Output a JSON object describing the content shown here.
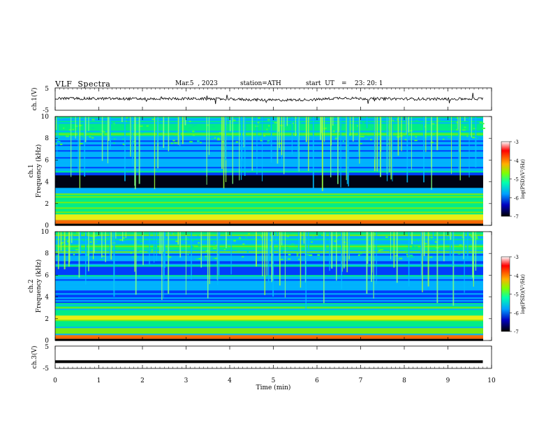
{
  "header": {
    "title": "VLF  Spectra",
    "date": "Mar.5  , 2023",
    "station": "station=ATH",
    "start_label": "start  UT",
    "start_sep": "=",
    "start_time": "23: 20: 1"
  },
  "chart_data": [
    {
      "type": "line",
      "id": "ch1-waveform",
      "ylabel": "ch.1(V)",
      "ylim": [
        -5,
        5
      ],
      "yticks": [
        "5",
        "-5"
      ],
      "xlim": [
        0,
        10
      ],
      "description_series": "noise waveform around ~0 V with occasional spikes",
      "x": [
        0,
        1,
        2,
        3,
        4,
        5,
        6,
        6.6,
        7,
        8,
        9,
        9.8
      ],
      "y": [
        0.3,
        0.2,
        0.1,
        0.2,
        0.0,
        -0.5,
        -0.2,
        0.6,
        0.2,
        0.1,
        0.0,
        0.2
      ]
    },
    {
      "type": "heatmap",
      "id": "ch1-spectrogram",
      "ylabel": "ch.1\nFrequency (kHz)",
      "ylabel_line1": "ch.1",
      "ylabel_line2": "Frequency (kHz)",
      "ylim": [
        0,
        10
      ],
      "yticks": [
        "0",
        "2",
        "4",
        "6",
        "8",
        "10"
      ],
      "xlim": [
        0,
        10
      ],
      "zlim": [
        -7,
        -3
      ],
      "colorbar_label": "log(PSD)(V²/Hz)",
      "colorbar_ticks": [
        "-3",
        "-4",
        "-5",
        "-6",
        "-7"
      ],
      "bands_khz": [
        {
          "f": 0.3,
          "level": -3.8
        },
        {
          "f": 0.7,
          "level": -4.5
        },
        {
          "f": 1.2,
          "level": -5.0
        },
        {
          "f": 1.8,
          "level": -5.2
        },
        {
          "f": 2.2,
          "level": -5.0
        },
        {
          "f": 3.7,
          "level": -7.0
        },
        {
          "f": 4.3,
          "level": -7.0
        },
        {
          "f": 5.0,
          "level": -5.5
        },
        {
          "f": 7.0,
          "level": -5.8
        }
      ]
    },
    {
      "type": "heatmap",
      "id": "ch2-spectrogram",
      "ylabel": "ch.2\nFrequency (kHz)",
      "ylabel_line1": "ch.2",
      "ylabel_line2": "Frequency (kHz)",
      "ylim": [
        0,
        10
      ],
      "yticks": [
        "0",
        "2",
        "4",
        "6",
        "8",
        "10"
      ],
      "xlim": [
        0,
        10
      ],
      "zlim": [
        -7,
        -3
      ],
      "colorbar_label": "log(PSD)(V²/Hz)",
      "colorbar_ticks": [
        "-3",
        "-4",
        "-5",
        "-6",
        "-7"
      ],
      "bands_khz": [
        {
          "f": 0.3,
          "level": -3.8
        },
        {
          "f": 0.8,
          "level": -4.8
        },
        {
          "f": 1.5,
          "level": -5.0
        },
        {
          "f": 2.0,
          "level": -4.2
        },
        {
          "f": 2.6,
          "level": -5.2
        },
        {
          "f": 3.2,
          "level": -5.3
        },
        {
          "f": 5.0,
          "level": -5.8
        }
      ]
    },
    {
      "type": "line",
      "id": "ch3-waveform",
      "ylabel": "ch.3(V)",
      "ylim": [
        -5,
        5
      ],
      "yticks": [
        "5",
        "-5"
      ],
      "xlim": [
        0,
        10
      ],
      "x": [
        0,
        9.8
      ],
      "y": [
        -2,
        -2
      ]
    }
  ],
  "xaxis": {
    "label": "Time  (min)",
    "ticks": [
      "0",
      "1",
      "2",
      "3",
      "4",
      "5",
      "6",
      "7",
      "8",
      "9",
      "10"
    ]
  },
  "colors": {
    "background": "#ffffff",
    "colormap": [
      "#000000",
      "#0000a0",
      "#0040ff",
      "#00c0ff",
      "#00ff80",
      "#80ff00",
      "#ffff00",
      "#ff8000",
      "#ff0000",
      "#ffffff"
    ]
  }
}
